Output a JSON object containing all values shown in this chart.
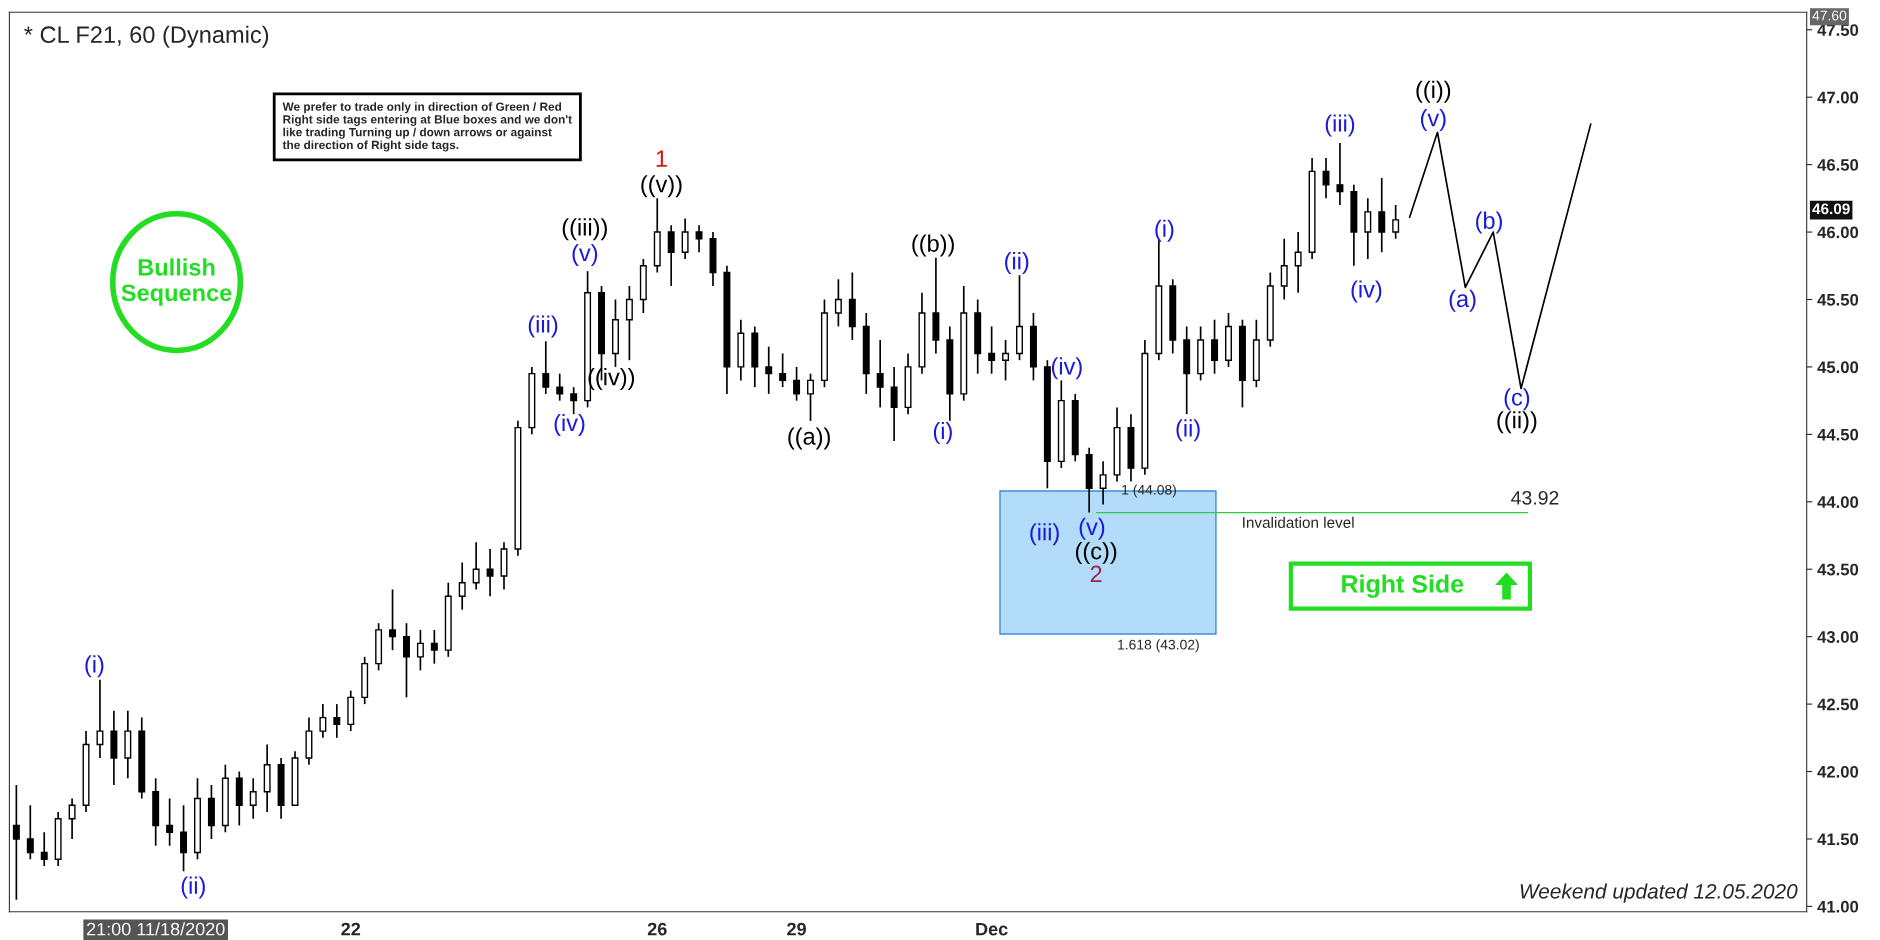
{
  "chart_data": {
    "type": "candlestick",
    "title": "* CL F21, 60 (Dynamic)",
    "categories": [
      null,
      null,
      null,
      null,
      null,
      null,
      null,
      null,
      null,
      null,
      "21:00 11/18/2020",
      null,
      null,
      null,
      null,
      null,
      null,
      null,
      null,
      null,
      null,
      null,
      null,
      null,
      "22",
      null,
      null,
      null,
      null,
      null,
      null,
      null,
      null,
      null,
      null,
      null,
      null,
      null,
      null,
      null,
      null,
      null,
      null,
      null,
      null,
      null,
      "26",
      null,
      null,
      null,
      null,
      null,
      null,
      null,
      null,
      null,
      "29",
      null,
      null,
      null,
      null,
      null,
      null,
      null,
      null,
      null,
      null,
      null,
      null,
      null,
      "Dec",
      null,
      null,
      null,
      null,
      null,
      null,
      null,
      null,
      null,
      null,
      null,
      null,
      null,
      null,
      null,
      null,
      null,
      null,
      null,
      null,
      null,
      null,
      null,
      null,
      null,
      null,
      null,
      null,
      null,
      null,
      null,
      null,
      null,
      null,
      null,
      null,
      null,
      null,
      null,
      null,
      null,
      null,
      null,
      null,
      null,
      null,
      null,
      null,
      null,
      null,
      null,
      null,
      null,
      null,
      null,
      null,
      null,
      null
    ],
    "ohlc": [
      [
        41.6,
        41.9,
        41.05,
        41.5
      ],
      [
        41.5,
        41.75,
        41.35,
        41.4
      ],
      [
        41.4,
        41.55,
        41.3,
        41.35
      ],
      [
        41.35,
        41.7,
        41.3,
        41.65
      ],
      [
        41.65,
        41.8,
        41.5,
        41.75
      ],
      [
        41.75,
        42.3,
        41.7,
        42.2
      ],
      [
        42.2,
        42.68,
        42.1,
        42.3
      ],
      [
        42.3,
        42.45,
        41.9,
        42.1
      ],
      [
        42.1,
        42.45,
        41.95,
        42.3
      ],
      [
        42.3,
        42.4,
        41.8,
        41.85
      ],
      [
        41.85,
        41.95,
        41.45,
        41.6
      ],
      [
        41.6,
        41.8,
        41.45,
        41.55
      ],
      [
        41.55,
        41.75,
        41.26,
        41.4
      ],
      [
        41.4,
        41.95,
        41.35,
        41.8
      ],
      [
        41.8,
        41.9,
        41.5,
        41.6
      ],
      [
        41.6,
        42.05,
        41.55,
        41.95
      ],
      [
        41.95,
        42.0,
        41.6,
        41.75
      ],
      [
        41.75,
        41.95,
        41.65,
        41.85
      ],
      [
        41.85,
        42.2,
        41.7,
        42.05
      ],
      [
        42.05,
        42.1,
        41.65,
        41.75
      ],
      [
        41.75,
        42.15,
        41.75,
        42.1
      ],
      [
        42.1,
        42.4,
        42.05,
        42.3
      ],
      [
        42.3,
        42.5,
        42.25,
        42.4
      ],
      [
        42.4,
        42.5,
        42.25,
        42.35
      ],
      [
        42.35,
        42.6,
        42.3,
        42.55
      ],
      [
        42.55,
        42.85,
        42.5,
        42.8
      ],
      [
        42.8,
        43.1,
        42.75,
        43.05
      ],
      [
        43.05,
        43.35,
        42.9,
        43.0
      ],
      [
        43.0,
        43.1,
        42.55,
        42.85
      ],
      [
        42.85,
        43.05,
        42.75,
        42.95
      ],
      [
        42.95,
        43.05,
        42.8,
        42.9
      ],
      [
        42.9,
        43.4,
        42.85,
        43.3
      ],
      [
        43.3,
        43.55,
        43.2,
        43.4
      ],
      [
        43.4,
        43.7,
        43.35,
        43.5
      ],
      [
        43.5,
        43.65,
        43.3,
        43.45
      ],
      [
        43.45,
        43.7,
        43.35,
        43.65
      ],
      [
        43.65,
        44.6,
        43.6,
        44.55
      ],
      [
        44.55,
        45.0,
        44.5,
        44.95
      ],
      [
        44.95,
        45.19,
        44.8,
        44.85
      ],
      [
        44.85,
        44.95,
        44.75,
        44.8
      ],
      [
        44.8,
        44.85,
        44.65,
        44.75
      ],
      [
        44.75,
        45.71,
        44.7,
        45.55
      ],
      [
        45.55,
        45.6,
        44.9,
        45.1
      ],
      [
        45.1,
        45.5,
        45.0,
        45.35
      ],
      [
        45.35,
        45.6,
        45.05,
        45.5
      ],
      [
        45.5,
        45.8,
        45.4,
        45.75
      ],
      [
        45.75,
        46.25,
        45.7,
        46.0
      ],
      [
        46.0,
        46.05,
        45.6,
        45.85
      ],
      [
        45.85,
        46.1,
        45.8,
        46.0
      ],
      [
        46.0,
        46.05,
        45.85,
        45.95
      ],
      [
        45.95,
        46.0,
        45.6,
        45.7
      ],
      [
        45.7,
        45.75,
        44.8,
        45.0
      ],
      [
        45.0,
        45.35,
        44.9,
        45.25
      ],
      [
        45.25,
        45.3,
        44.85,
        45.0
      ],
      [
        45.0,
        45.15,
        44.8,
        44.95
      ],
      [
        44.95,
        45.1,
        44.85,
        44.9
      ],
      [
        44.9,
        45.0,
        44.75,
        44.8
      ],
      [
        44.8,
        44.95,
        44.6,
        44.9
      ],
      [
        44.9,
        45.5,
        44.85,
        45.4
      ],
      [
        45.4,
        45.65,
        45.3,
        45.5
      ],
      [
        45.5,
        45.7,
        45.2,
        45.3
      ],
      [
        45.3,
        45.4,
        44.8,
        44.95
      ],
      [
        44.95,
        45.2,
        44.7,
        44.85
      ],
      [
        44.85,
        45.0,
        44.45,
        44.7
      ],
      [
        44.7,
        45.1,
        44.65,
        45.0
      ],
      [
        45.0,
        45.55,
        44.95,
        45.4
      ],
      [
        45.4,
        45.81,
        45.1,
        45.2
      ],
      [
        45.2,
        45.3,
        44.6,
        44.8
      ],
      [
        44.8,
        45.6,
        44.75,
        45.4
      ],
      [
        45.4,
        45.5,
        44.95,
        45.1
      ],
      [
        45.1,
        45.3,
        44.95,
        45.05
      ],
      [
        45.05,
        45.2,
        44.9,
        45.1
      ],
      [
        45.1,
        45.68,
        45.05,
        45.3
      ],
      [
        45.3,
        45.4,
        44.9,
        45.0
      ],
      [
        45.0,
        45.05,
        44.1,
        44.3
      ],
      [
        44.3,
        44.9,
        44.25,
        44.75
      ],
      [
        44.75,
        44.8,
        44.3,
        44.35
      ],
      [
        44.35,
        44.4,
        43.92,
        44.1
      ],
      [
        44.1,
        44.3,
        43.98,
        44.2
      ],
      [
        44.2,
        44.7,
        44.15,
        44.55
      ],
      [
        44.55,
        44.65,
        44.15,
        44.25
      ],
      [
        44.25,
        45.2,
        44.2,
        45.1
      ],
      [
        45.1,
        45.94,
        45.05,
        45.6
      ],
      [
        45.6,
        45.65,
        45.1,
        45.2
      ],
      [
        45.2,
        45.3,
        44.65,
        44.95
      ],
      [
        44.95,
        45.3,
        44.9,
        45.2
      ],
      [
        45.2,
        45.35,
        44.95,
        45.05
      ],
      [
        45.05,
        45.4,
        45.0,
        45.3
      ],
      [
        45.3,
        45.35,
        44.7,
        44.9
      ],
      [
        44.9,
        45.35,
        44.85,
        45.2
      ],
      [
        45.2,
        45.7,
        45.15,
        45.6
      ],
      [
        45.6,
        45.95,
        45.5,
        45.75
      ],
      [
        45.75,
        46.0,
        45.55,
        45.85
      ],
      [
        45.85,
        46.55,
        45.8,
        46.45
      ],
      [
        46.45,
        46.55,
        46.25,
        46.35
      ],
      [
        46.35,
        46.66,
        46.2,
        46.3
      ],
      [
        46.3,
        46.35,
        45.75,
        46.0
      ],
      [
        46.0,
        46.25,
        45.8,
        46.15
      ],
      [
        46.15,
        46.4,
        45.85,
        46.0
      ],
      [
        46.0,
        46.2,
        45.95,
        46.09
      ],
      null,
      null,
      null,
      null,
      null,
      null,
      null,
      null,
      null,
      null,
      null,
      null,
      null,
      null,
      null,
      null,
      null,
      null,
      null,
      null,
      null,
      null,
      null,
      null,
      null,
      null,
      null,
      null,
      null
    ],
    "color": "#000000",
    "series": [
      {
        "type": "line",
        "color": "#000000",
        "values": [
          null,
          null,
          null,
          null,
          null,
          null,
          null,
          null,
          null,
          null,
          null,
          null,
          null,
          null,
          null,
          null,
          null,
          null,
          null,
          null,
          null,
          null,
          null,
          null,
          null,
          null,
          null,
          null,
          null,
          null,
          null,
          null,
          null,
          null,
          null,
          null,
          null,
          null,
          null,
          null,
          null,
          null,
          null,
          null,
          null,
          null,
          null,
          null,
          null,
          null,
          null,
          null,
          null,
          null,
          null,
          null,
          null,
          null,
          null,
          null,
          null,
          null,
          null,
          null,
          null,
          null,
          null,
          null,
          null,
          null,
          null,
          null,
          null,
          null,
          null,
          null,
          null,
          null,
          null,
          null,
          null,
          null,
          null,
          null,
          null,
          null,
          null,
          null,
          null,
          null,
          null,
          null,
          null,
          null,
          null,
          null,
          null,
          null,
          null,
          null,
          46.11,
          null,
          46.74,
          null,
          45.59,
          null,
          46.0,
          null,
          44.84,
          null,
          null,
          null,
          null,
          46.8,
          null,
          null,
          null,
          null,
          null,
          null,
          null,
          null,
          null,
          null,
          null,
          null,
          null,
          null,
          null
        ]
      }
    ],
    "ylim": [
      40.96,
      47.63
    ],
    "yticks": [
      {
        "value": 41,
        "label": "41.00"
      },
      {
        "value": 41.5,
        "label": "41.50"
      },
      {
        "value": 42,
        "label": "42.00"
      },
      {
        "value": 42.5,
        "label": "42.50"
      },
      {
        "value": 43,
        "label": "43.00"
      },
      {
        "value": 43.5,
        "label": "43.50"
      },
      {
        "value": 44,
        "label": "44.00"
      },
      {
        "value": 44.5,
        "label": "44.50"
      },
      {
        "value": 45,
        "label": "45.00"
      },
      {
        "value": 45.5,
        "label": "45.50"
      },
      {
        "value": 46,
        "label": "46.00"
      },
      {
        "value": 46.5,
        "label": "46.50"
      },
      {
        "value": 47,
        "label": "47.00"
      },
      {
        "value": 47.5,
        "label": "47.50"
      }
    ],
    "grid": false,
    "legend": false,
    "ref_lines": [
      {
        "axis": "y",
        "value": 43.92,
        "label": "Invalidation level",
        "color": "#2ecc40"
      }
    ],
    "bands": [
      {
        "axis": "y",
        "from": 43.02,
        "to": 44.08,
        "color": "#b3dcfb"
      }
    ],
    "annotations": [
      "We prefer to trade only in direction of Green / Red\nRight side tags entering at Blue boxes and we don't\nlike trading Turning up / down arrows or against\nthe direction of Right side tags.",
      "Bullish\nSequence",
      "Right Side",
      "Weekend updated 12.05.2020",
      "(i)",
      "(ii)",
      "(iii)",
      "(iv)",
      "(v)",
      "((iii))",
      "((iv))",
      "((v))",
      "1",
      "((a))",
      "((b))",
      "(i)",
      "(ii)",
      "(iii)",
      "(iv)",
      "(v)",
      "((c))",
      "2",
      "(i)",
      "(ii)",
      "(iii)",
      "(iv)",
      "((i))",
      "(v)",
      "(a)",
      "(b)",
      "(c)",
      "((ii))",
      "1 (44.08)",
      "1.618 (43.02)",
      "43.92",
      "46.09",
      "47.60"
    ]
  }
}
